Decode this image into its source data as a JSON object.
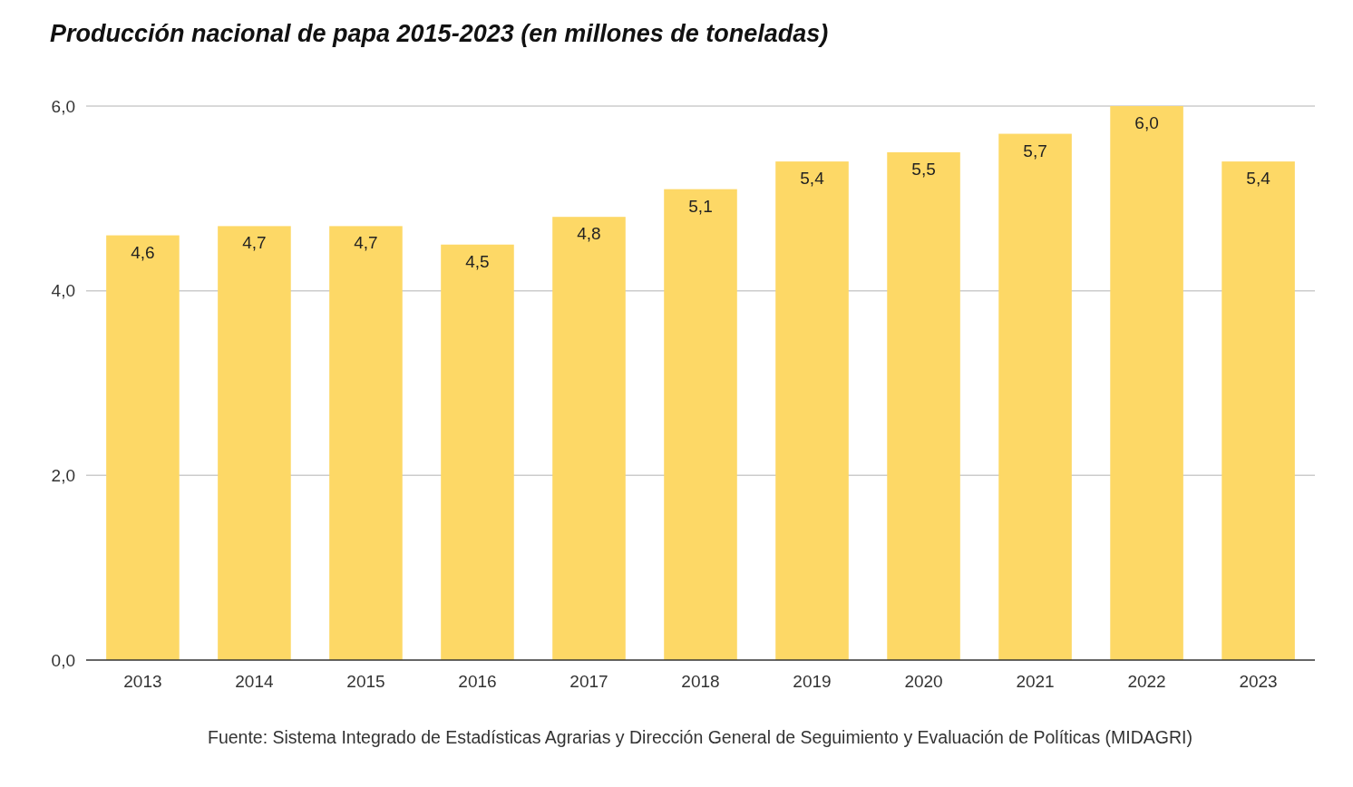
{
  "chart_data": {
    "type": "bar",
    "title": "Producción nacional de papa 2015-2023 (en millones de toneladas)",
    "categories": [
      "2013",
      "2014",
      "2015",
      "2016",
      "2017",
      "2018",
      "2019",
      "2020",
      "2021",
      "2022",
      "2023"
    ],
    "values": [
      4.6,
      4.7,
      4.7,
      4.5,
      4.8,
      5.1,
      5.4,
      5.5,
      5.7,
      6.0,
      5.4
    ],
    "value_labels": [
      "4,6",
      "4,7",
      "4,7",
      "4,5",
      "4,8",
      "5,1",
      "5,4",
      "5,5",
      "5,7",
      "6,0",
      "5,4"
    ],
    "color": "#fdd866",
    "ylim": [
      0,
      6
    ],
    "yticks": [
      {
        "value": 0,
        "label": "0,0"
      },
      {
        "value": 2,
        "label": "2,0"
      },
      {
        "value": 4,
        "label": "4,0"
      },
      {
        "value": 6,
        "label": "6,0"
      }
    ],
    "grid": "y",
    "annotations": [
      "Fuente: Sistema Integrado de Estadísticas Agrarias y Dirección General de Seguimiento y Evaluación de Políticas (MIDAGRI)"
    ]
  }
}
